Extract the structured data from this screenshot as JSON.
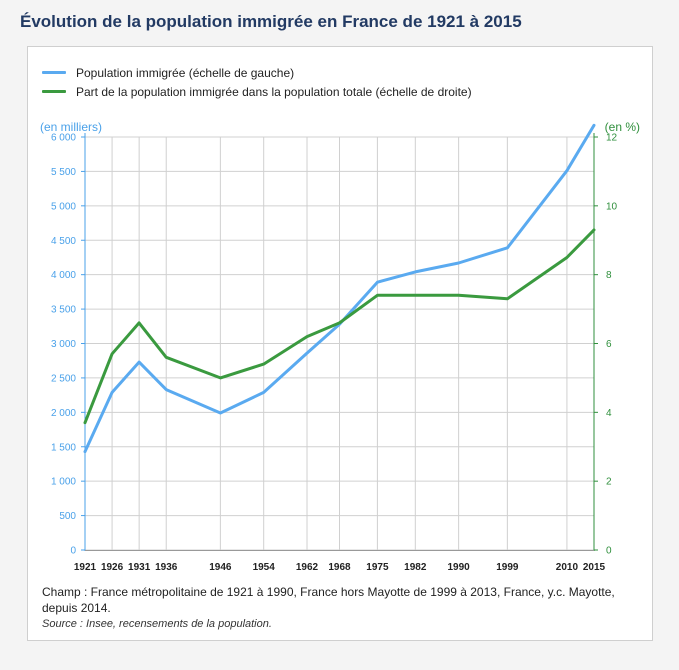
{
  "title": "Évolution de la population immigrée en France de 1921 à 2015",
  "colors": {
    "blue": "#5aaaf0",
    "green": "#3a9a3f",
    "grid": "#d0d0d0",
    "axis_blue": "#4aa1e9",
    "axis_green": "#2f8f3c"
  },
  "legend": [
    {
      "label": "Population immigrée (échelle de gauche)",
      "color": "#5aaaf0"
    },
    {
      "label": "Part de la population immigrée dans la population totale (échelle de droite)",
      "color": "#3a9a3f"
    }
  ],
  "chart_data": {
    "type": "line",
    "title": "Évolution de la population immigrée en France de 1921 à 2015",
    "x": [
      1921,
      1926,
      1931,
      1936,
      1946,
      1954,
      1962,
      1968,
      1975,
      1982,
      1990,
      1999,
      2010,
      2015
    ],
    "x_tick_labels": [
      "1921",
      "1926",
      "1931",
      "1936",
      "1946",
      "1954",
      "1962",
      "1968",
      "1975",
      "1982",
      "1990",
      "1999",
      "2010",
      "2015"
    ],
    "xlim": [
      1921,
      2015
    ],
    "y_left": {
      "label": "(en milliers)",
      "range": [
        0,
        6000
      ],
      "ticks": [
        0,
        500,
        1000,
        1500,
        2000,
        2500,
        3000,
        3500,
        4000,
        4500,
        5000,
        5500,
        6000
      ],
      "tick_labels": [
        "0",
        "500",
        "1 000",
        "1 500",
        "2 000",
        "2 500",
        "3 000",
        "3 500",
        "4 000",
        "4 500",
        "5 000",
        "5 500",
        "6 000"
      ]
    },
    "y_right": {
      "label": "(en %)",
      "range": [
        0,
        12
      ],
      "ticks": [
        0,
        2,
        4,
        6,
        8,
        10,
        12
      ],
      "tick_labels": [
        "0",
        "2",
        "4",
        "6",
        "8",
        "10",
        "12"
      ]
    },
    "grid": true,
    "series": [
      {
        "name": "Population immigrée (échelle de gauche)",
        "axis": "left",
        "color": "#5aaaf0",
        "values": [
          1430,
          2290,
          2730,
          2330,
          1990,
          2290,
          2860,
          3280,
          3890,
          4040,
          4170,
          4390,
          5510,
          6170
        ]
      },
      {
        "name": "Part de la population immigrée dans la population totale (échelle de droite)",
        "axis": "right",
        "color": "#3a9a3f",
        "values": [
          3.7,
          5.7,
          6.6,
          5.6,
          5.0,
          5.4,
          6.2,
          6.6,
          7.4,
          7.4,
          7.4,
          7.3,
          8.5,
          9.3
        ]
      }
    ]
  },
  "notes": {
    "champ": "Champ : France métropolitaine de 1921 à 1990, France hors Mayotte de 1999 à 2013, France, y.c. Mayotte, depuis 2014.",
    "source": "Source : Insee, recensements de la population."
  }
}
